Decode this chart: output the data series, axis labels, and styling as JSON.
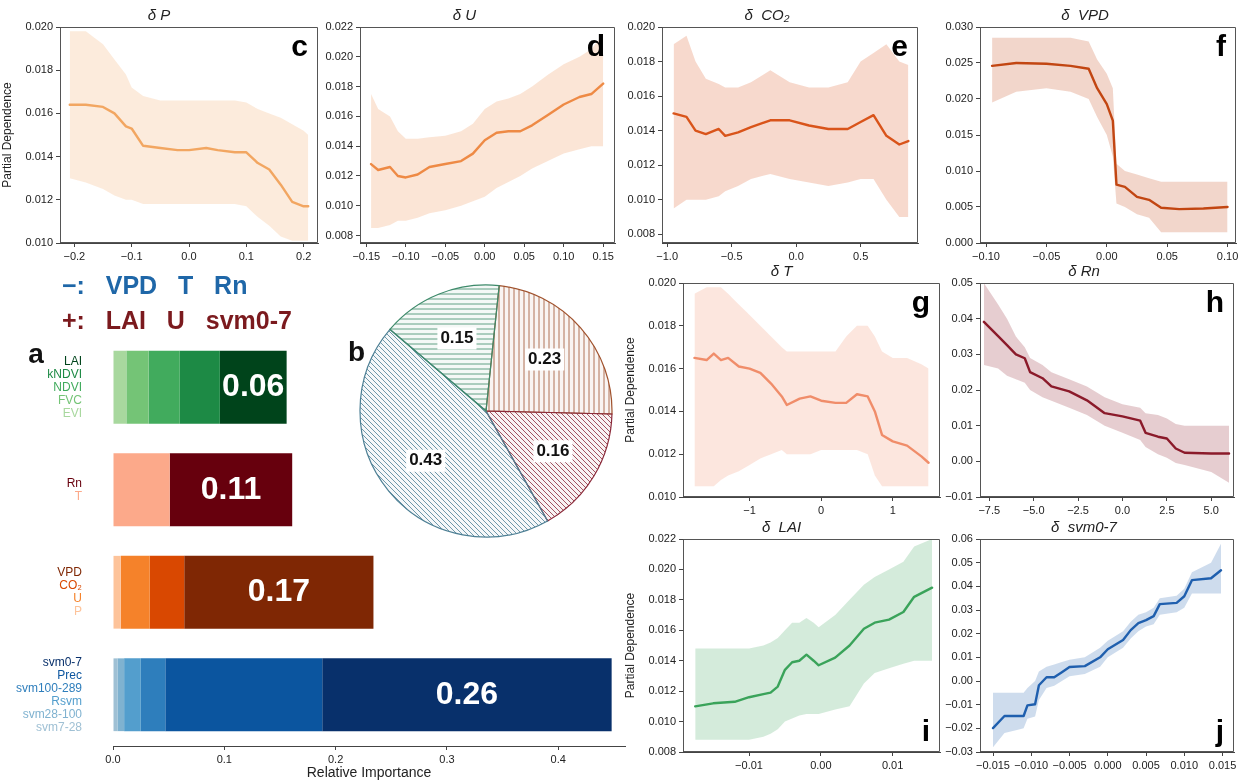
{
  "chart_data": [
    {
      "type": "line",
      "title": "δ P",
      "ylabel": "Partial Dependence",
      "annotations": [
        "c"
      ],
      "xlim": [
        -0.225,
        0.225
      ],
      "xticks": [
        {
          "value": -0.2,
          "label": "−0.2"
        },
        {
          "value": -0.1,
          "label": "−0.1"
        },
        {
          "value": 0,
          "label": "0.0"
        },
        {
          "value": 0.1,
          "label": "0.1"
        },
        {
          "value": 0.2,
          "label": "0.2"
        }
      ],
      "ylim": [
        0.01,
        0.02
      ],
      "yticks": [
        {
          "value": 0.01,
          "label": "0.010"
        },
        {
          "value": 0.012,
          "label": "0.012"
        },
        {
          "value": 0.014,
          "label": "0.014"
        },
        {
          "value": 0.016,
          "label": "0.016"
        },
        {
          "value": 0.018,
          "label": "0.018"
        },
        {
          "value": 0.02,
          "label": "0.020"
        }
      ],
      "series": [
        {
          "color": "#f2a661",
          "x": [
            -0.208,
            -0.18,
            -0.15,
            -0.13,
            -0.11,
            -0.1,
            -0.08,
            -0.05,
            -0.02,
            0,
            0.03,
            0.05,
            0.08,
            0.1,
            0.12,
            0.14,
            0.16,
            0.18,
            0.2,
            0.208
          ],
          "values": [
            0.0164,
            0.0164,
            0.0163,
            0.016,
            0.0154,
            0.0153,
            0.0145,
            0.0144,
            0.0143,
            0.0143,
            0.0144,
            0.0143,
            0.0142,
            0.0142,
            0.0137,
            0.0134,
            0.0127,
            0.0119,
            0.0117,
            0.0117
          ],
          "upper": [
            0.0198,
            0.0198,
            0.0192,
            0.0185,
            0.0178,
            0.0172,
            0.0168,
            0.0166,
            0.0166,
            0.0166,
            0.0166,
            0.0166,
            0.0166,
            0.0165,
            0.0162,
            0.016,
            0.0158,
            0.0155,
            0.0152,
            0.015
          ],
          "lower": [
            0.013,
            0.0128,
            0.0125,
            0.0122,
            0.012,
            0.012,
            0.0118,
            0.0118,
            0.0118,
            0.0118,
            0.0118,
            0.0118,
            0.0118,
            0.0117,
            0.0112,
            0.0108,
            0.0103,
            0.0101,
            0.0101,
            0.0101
          ]
        }
      ]
    },
    {
      "type": "line",
      "title": "δ U",
      "annotations": [
        "d"
      ],
      "xlim": [
        -0.158,
        0.165
      ],
      "xticks": [
        {
          "value": -0.15,
          "label": "−0.15"
        },
        {
          "value": -0.1,
          "label": "−0.10"
        },
        {
          "value": -0.05,
          "label": "−0.05"
        },
        {
          "value": 0,
          "label": "0.00"
        },
        {
          "value": 0.05,
          "label": "0.05"
        },
        {
          "value": 0.1,
          "label": "0.10"
        },
        {
          "value": 0.15,
          "label": "0.15"
        }
      ],
      "ylim": [
        0.0075,
        0.022
      ],
      "yticks": [
        {
          "value": 0.008,
          "label": "0.008"
        },
        {
          "value": 0.01,
          "label": "0.010"
        },
        {
          "value": 0.012,
          "label": "0.012"
        },
        {
          "value": 0.014,
          "label": "0.014"
        },
        {
          "value": 0.016,
          "label": "0.016"
        },
        {
          "value": 0.018,
          "label": "0.018"
        },
        {
          "value": 0.02,
          "label": "0.020"
        },
        {
          "value": 0.022,
          "label": "0.022"
        }
      ],
      "series": [
        {
          "color": "#ee8a45",
          "x": [
            -0.144,
            -0.135,
            -0.12,
            -0.11,
            -0.1,
            -0.085,
            -0.07,
            -0.05,
            -0.03,
            -0.015,
            0,
            0.015,
            0.03,
            0.045,
            0.06,
            0.08,
            0.1,
            0.12,
            0.135,
            0.15
          ],
          "values": [
            0.0128,
            0.0124,
            0.0126,
            0.012,
            0.0119,
            0.0121,
            0.0126,
            0.0128,
            0.013,
            0.0135,
            0.0144,
            0.0149,
            0.015,
            0.015,
            0.0154,
            0.0161,
            0.0168,
            0.0173,
            0.0175,
            0.0182
          ],
          "upper": [
            0.0175,
            0.0165,
            0.016,
            0.015,
            0.0145,
            0.0145,
            0.0146,
            0.0147,
            0.015,
            0.0155,
            0.0165,
            0.017,
            0.0172,
            0.0175,
            0.018,
            0.0188,
            0.0195,
            0.02,
            0.0205,
            0.0215
          ],
          "lower": [
            0.0085,
            0.0085,
            0.0087,
            0.009,
            0.009,
            0.0092,
            0.0095,
            0.0097,
            0.01,
            0.0103,
            0.0106,
            0.0112,
            0.0116,
            0.012,
            0.0125,
            0.013,
            0.0135,
            0.0138,
            0.014,
            0.014
          ]
        }
      ]
    },
    {
      "type": "line",
      "title": "δ  CO₂",
      "annotations": [
        "e"
      ],
      "xlim": [
        -1.04,
        0.945
      ],
      "xticks": [
        {
          "value": -1,
          "label": "−1.0"
        },
        {
          "value": -0.5,
          "label": "−0.5"
        },
        {
          "value": 0,
          "label": "0.0"
        },
        {
          "value": 0.5,
          "label": "0.5"
        }
      ],
      "ylim": [
        0.0075,
        0.02
      ],
      "yticks": [
        {
          "value": 0.008,
          "label": "0.008"
        },
        {
          "value": 0.01,
          "label": "0.010"
        },
        {
          "value": 0.012,
          "label": "0.012"
        },
        {
          "value": 0.014,
          "label": "0.014"
        },
        {
          "value": 0.016,
          "label": "0.016"
        },
        {
          "value": 0.018,
          "label": "0.018"
        },
        {
          "value": 0.02,
          "label": "0.020"
        }
      ],
      "series": [
        {
          "color": "#d9541a",
          "x": [
            -0.95,
            -0.85,
            -0.78,
            -0.7,
            -0.6,
            -0.55,
            -0.45,
            -0.35,
            -0.2,
            -0.05,
            0.1,
            0.25,
            0.4,
            0.5,
            0.6,
            0.7,
            0.8,
            0.87
          ],
          "values": [
            0.015,
            0.0148,
            0.014,
            0.0138,
            0.0141,
            0.0137,
            0.0139,
            0.0142,
            0.0146,
            0.0146,
            0.0143,
            0.0141,
            0.0141,
            0.0145,
            0.0149,
            0.0137,
            0.0132,
            0.0134
          ],
          "upper": [
            0.019,
            0.0195,
            0.018,
            0.017,
            0.0167,
            0.0165,
            0.0165,
            0.0168,
            0.0175,
            0.0168,
            0.0165,
            0.0165,
            0.0168,
            0.018,
            0.0185,
            0.019,
            0.018,
            0.0178
          ],
          "lower": [
            0.0095,
            0.01,
            0.01,
            0.01,
            0.0102,
            0.0105,
            0.0108,
            0.0112,
            0.0115,
            0.0112,
            0.011,
            0.0108,
            0.011,
            0.0112,
            0.0112,
            0.01,
            0.009,
            0.009
          ]
        }
      ]
    },
    {
      "type": "line",
      "title": "δ  VPD",
      "annotations": [
        "f"
      ],
      "xlim": [
        -0.105,
        0.107
      ],
      "xticks": [
        {
          "value": -0.1,
          "label": "−0.10"
        },
        {
          "value": -0.05,
          "label": "−0.05"
        },
        {
          "value": 0,
          "label": "0.00"
        },
        {
          "value": 0.05,
          "label": "0.05"
        },
        {
          "value": 0.1,
          "label": "0.10"
        }
      ],
      "ylim": [
        0,
        0.03
      ],
      "yticks": [
        {
          "value": 0,
          "label": "0.000"
        },
        {
          "value": 0.005,
          "label": "0.005"
        },
        {
          "value": 0.01,
          "label": "0.010"
        },
        {
          "value": 0.015,
          "label": "0.015"
        },
        {
          "value": 0.02,
          "label": "0.020"
        },
        {
          "value": 0.025,
          "label": "0.025"
        },
        {
          "value": 0.03,
          "label": "0.030"
        }
      ],
      "series": [
        {
          "color": "#c24612",
          "x": [
            -0.095,
            -0.075,
            -0.05,
            -0.03,
            -0.015,
            -0.008,
            0,
            0.005,
            0.008,
            0.015,
            0.025,
            0.035,
            0.045,
            0.06,
            0.08,
            0.1
          ],
          "values": [
            0.0246,
            0.025,
            0.0249,
            0.0246,
            0.0242,
            0.0215,
            0.0193,
            0.017,
            0.0081,
            0.0078,
            0.0064,
            0.006,
            0.0049,
            0.0047,
            0.0048,
            0.005
          ],
          "upper": [
            0.0285,
            0.0285,
            0.0285,
            0.0285,
            0.028,
            0.0255,
            0.0235,
            0.0215,
            0.011,
            0.01,
            0.0095,
            0.009,
            0.0085,
            0.0085,
            0.0085,
            0.0085
          ],
          "lower": [
            0.0195,
            0.021,
            0.0215,
            0.021,
            0.02,
            0.0175,
            0.015,
            0.012,
            0.0055,
            0.005,
            0.004,
            0.0035,
            0.0015,
            0.0015,
            0.0015,
            0.0015
          ]
        }
      ]
    },
    {
      "type": "bar",
      "orientation": "horizontal",
      "stacked": true,
      "xlabel": "Relative Importance",
      "annotations": [
        "a",
        "−:   VPD   T   Rn",
        "+:   LAI   U   svm0-7"
      ],
      "categories": [
        null,
        null,
        null,
        null
      ],
      "xlim": [
        0,
        0.46
      ],
      "xticks": [
        {
          "value": 0,
          "label": "0.0"
        },
        {
          "value": 0.1,
          "label": "0.1"
        },
        {
          "value": 0.2,
          "label": "0.2"
        },
        {
          "value": 0.3,
          "label": "0.3"
        },
        {
          "value": 0.4,
          "label": "0.4"
        }
      ],
      "series": [
        {
          "name": "EVI",
          "color": "#a8d89e",
          "values": [
            0.012,
            null,
            null,
            null
          ]
        },
        {
          "name": "FVC",
          "color": "#74c476",
          "values": [
            0.02,
            null,
            null,
            null
          ]
        },
        {
          "name": "NDVI",
          "color": "#41ab5d",
          "values": [
            0.028,
            null,
            null,
            null
          ]
        },
        {
          "name": "kNDVI",
          "color": "#1d8a45",
          "values": [
            0.036,
            null,
            null,
            null
          ]
        },
        {
          "name": "LAI",
          "color": "#00441b",
          "values": [
            0.06,
            null,
            null,
            null
          ],
          "value_labels": [
            "0.06",
            null,
            null,
            null
          ]
        },
        {
          "name": "T",
          "color": "#fca98a",
          "values": [
            null,
            0.051,
            null,
            null
          ]
        },
        {
          "name": "Rn",
          "color": "#67000d",
          "values": [
            null,
            0.11,
            null,
            null
          ],
          "value_labels": [
            null,
            "0.11",
            null,
            null
          ]
        },
        {
          "name": "P",
          "color": "#fdc39a",
          "values": [
            null,
            null,
            0.007,
            null
          ]
        },
        {
          "name": "U",
          "color": "#f5822a",
          "values": [
            null,
            null,
            0.026,
            null
          ]
        },
        {
          "name": "CO₂",
          "color": "#d94801",
          "values": [
            null,
            null,
            0.031,
            null
          ]
        },
        {
          "name": "VPD",
          "color": "#7f2704",
          "values": [
            null,
            null,
            0.17,
            null
          ],
          "value_labels": [
            null,
            null,
            "0.17",
            null
          ]
        },
        {
          "name": "svm7-28",
          "color": "#9fc0d4",
          "values": [
            null,
            null,
            null,
            0.004
          ]
        },
        {
          "name": "svm28-100",
          "color": "#7fb2d0",
          "values": [
            null,
            null,
            null,
            0.006
          ]
        },
        {
          "name": "Rsvm",
          "color": "#539ecd",
          "values": [
            null,
            null,
            null,
            0.015
          ]
        },
        {
          "name": "svm100-289",
          "color": "#2e7ebc",
          "values": [
            null,
            null,
            null,
            0.022
          ]
        },
        {
          "name": "Prec",
          "color": "#0b559f",
          "values": [
            null,
            null,
            null,
            0.141
          ]
        },
        {
          "name": "svm0-7",
          "color": "#08306b",
          "values": [
            null,
            null,
            null,
            0.26
          ],
          "value_labels": [
            null,
            null,
            null,
            "0.26"
          ]
        }
      ]
    },
    {
      "type": "pie",
      "annotations": [
        "b"
      ],
      "data_labels": true,
      "categories": [
        null,
        null,
        null,
        null
      ],
      "values": [
        0.23,
        0.16,
        0.43,
        0.15
      ],
      "colors": [
        "#a0522d",
        "#8b2a3a",
        "#4d7f94",
        "#3d8a6a"
      ]
    },
    {
      "type": "line",
      "title": "δ T",
      "ylabel": "Partial Dependence",
      "annotations": [
        "g"
      ],
      "xlim": [
        -1.93,
        1.66
      ],
      "xticks": [
        {
          "value": -1,
          "label": "−1"
        },
        0,
        1
      ],
      "ylim": [
        0.01,
        0.02
      ],
      "yticks": [
        {
          "value": 0.01,
          "label": "0.010"
        },
        {
          "value": 0.012,
          "label": "0.012"
        },
        {
          "value": 0.014,
          "label": "0.014"
        },
        {
          "value": 0.016,
          "label": "0.016"
        },
        {
          "value": 0.018,
          "label": "0.018"
        },
        {
          "value": 0.02,
          "label": "0.020"
        }
      ],
      "series": [
        {
          "color": "#f08d6a",
          "x": [
            -1.77,
            -1.6,
            -1.5,
            -1.4,
            -1.3,
            -1.15,
            -1,
            -0.85,
            -0.7,
            -0.55,
            -0.48,
            -0.3,
            -0.15,
            0,
            0.2,
            0.35,
            0.5,
            0.65,
            0.75,
            0.85,
            1,
            1.2,
            1.4,
            1.5
          ],
          "values": [
            0.0165,
            0.0164,
            0.0167,
            0.0164,
            0.0165,
            0.0161,
            0.016,
            0.0158,
            0.0153,
            0.0147,
            0.0143,
            0.0146,
            0.0147,
            0.0145,
            0.0144,
            0.0144,
            0.0148,
            0.0147,
            0.014,
            0.0129,
            0.0126,
            0.0124,
            0.0119,
            0.0116
          ],
          "upper": [
            0.0195,
            0.0198,
            0.0198,
            0.0198,
            0.0195,
            0.019,
            0.0185,
            0.018,
            0.0175,
            0.017,
            0.0168,
            0.0168,
            0.0168,
            0.0168,
            0.0168,
            0.0175,
            0.018,
            0.018,
            0.0175,
            0.0168,
            0.0165,
            0.0165,
            0.0162,
            0.016
          ],
          "lower": [
            0.0105,
            0.0105,
            0.0105,
            0.0108,
            0.011,
            0.0112,
            0.0115,
            0.0118,
            0.012,
            0.0122,
            0.012,
            0.012,
            0.012,
            0.0122,
            0.0122,
            0.0122,
            0.0122,
            0.012,
            0.011,
            0.0105,
            0.0105,
            0.0105,
            0.0105,
            0.0105
          ]
        }
      ]
    },
    {
      "type": "line",
      "title": "δ Rn",
      "annotations": [
        "h"
      ],
      "xlim": [
        -8.02,
        6.28
      ],
      "xticks": [
        {
          "value": -7.5,
          "label": "−7.5"
        },
        {
          "value": -5,
          "label": "−5.0"
        },
        {
          "value": -2.5,
          "label": "−2.5"
        },
        {
          "value": 0,
          "label": "0.0"
        },
        {
          "value": 2.5,
          "label": "2.5"
        },
        {
          "value": 5,
          "label": "5.0"
        }
      ],
      "ylim": [
        -0.01,
        0.05
      ],
      "yticks": [
        {
          "value": -0.01,
          "label": "−0.01"
        },
        {
          "value": 0,
          "label": "0.00"
        },
        0.01,
        0.02,
        0.03,
        0.04,
        0.05
      ],
      "series": [
        {
          "color": "#8b1a2a",
          "x": [
            -7.8,
            -7,
            -6.5,
            -6,
            -5.5,
            -5.2,
            -4.5,
            -4,
            -3,
            -2,
            -1,
            0,
            1,
            1.3,
            2,
            2.5,
            3,
            3.5,
            5,
            6
          ],
          "values": [
            0.0391,
            0.0351,
            0.0326,
            0.03,
            0.0289,
            0.025,
            0.0233,
            0.021,
            0.0196,
            0.0171,
            0.0135,
            0.0126,
            0.0114,
            0.008,
            0.0069,
            0.0064,
            0.0036,
            0.0024,
            0.0022,
            0.0022
          ],
          "upper": [
            0.05,
            0.044,
            0.04,
            0.035,
            0.032,
            0.029,
            0.027,
            0.025,
            0.023,
            0.021,
            0.018,
            0.016,
            0.015,
            0.0135,
            0.013,
            0.012,
            0.0105,
            0.01,
            0.01,
            0.01
          ],
          "lower": [
            0.027,
            0.026,
            0.024,
            0.023,
            0.022,
            0.02,
            0.018,
            0.017,
            0.015,
            0.013,
            0.01,
            0.008,
            0.006,
            0.004,
            0.002,
            0.001,
            -0.0005,
            -0.001,
            -0.003,
            -0.006
          ]
        }
      ]
    },
    {
      "type": "line",
      "title": "δ  LAI",
      "ylabel": "Partial Dependence",
      "annotations": [
        "i"
      ],
      "xlim": [
        -0.0192,
        0.0166
      ],
      "xticks": [
        {
          "value": -0.01,
          "label": "−0.01"
        },
        {
          "value": 0,
          "label": "0.00"
        },
        0.01
      ],
      "ylim": [
        0.008,
        0.022
      ],
      "yticks": [
        {
          "value": 0.008,
          "label": "0.008"
        },
        {
          "value": 0.01,
          "label": "0.010"
        },
        {
          "value": 0.012,
          "label": "0.012"
        },
        {
          "value": 0.014,
          "label": "0.014"
        },
        {
          "value": 0.016,
          "label": "0.016"
        },
        {
          "value": 0.018,
          "label": "0.018"
        },
        {
          "value": 0.02,
          "label": "0.020"
        },
        {
          "value": 0.022,
          "label": "0.022"
        }
      ],
      "series": [
        {
          "color": "#3aa35a",
          "x": [
            -0.0175,
            -0.015,
            -0.012,
            -0.01,
            -0.008,
            -0.007,
            -0.006,
            -0.005,
            -0.004,
            -0.003,
            -0.002,
            -0.001,
            -0.0003,
            0.002,
            0.004,
            0.006,
            0.0075,
            0.0095,
            0.0115,
            0.013,
            0.0155
          ],
          "values": [
            0.011,
            0.0112,
            0.0113,
            0.0116,
            0.0118,
            0.0119,
            0.0123,
            0.0134,
            0.0139,
            0.014,
            0.0144,
            0.014,
            0.0137,
            0.0142,
            0.015,
            0.0161,
            0.0165,
            0.0167,
            0.0172,
            0.0182,
            0.0188
          ],
          "upper": [
            0.0148,
            0.0148,
            0.0148,
            0.0148,
            0.015,
            0.0152,
            0.0155,
            0.016,
            0.0165,
            0.0165,
            0.0168,
            0.0165,
            0.0162,
            0.017,
            0.018,
            0.019,
            0.0195,
            0.02,
            0.0205,
            0.0215,
            0.022
          ],
          "lower": [
            0.0088,
            0.0088,
            0.0088,
            0.0088,
            0.009,
            0.0092,
            0.0095,
            0.01,
            0.0102,
            0.0104,
            0.0105,
            0.0105,
            0.0105,
            0.0108,
            0.011,
            0.0125,
            0.0132,
            0.0135,
            0.0138,
            0.014,
            0.014
          ]
        }
      ]
    },
    {
      "type": "line",
      "title": "δ  svm0-7",
      "annotations": [
        "j"
      ],
      "xlim": [
        -0.0167,
        0.0165
      ],
      "xticks": [
        {
          "value": -0.015,
          "label": "−0.015"
        },
        {
          "value": -0.01,
          "label": "−0.010"
        },
        {
          "value": -0.005,
          "label": "−0.005"
        },
        {
          "value": 0,
          "label": "0.000"
        },
        0.005,
        {
          "value": 0.01,
          "label": "0.010"
        },
        0.015
      ],
      "ylim": [
        -0.03,
        0.06
      ],
      "yticks": [
        {
          "value": -0.03,
          "label": "−0.03"
        },
        {
          "value": -0.02,
          "label": "−0.02"
        },
        {
          "value": -0.01,
          "label": "−0.01"
        },
        {
          "value": 0,
          "label": "0.00"
        },
        0.01,
        0.02,
        0.03,
        0.04,
        0.05,
        {
          "value": 0.06,
          "label": "0.06"
        }
      ],
      "series": [
        {
          "color": "#1f5fae",
          "x": [
            -0.015,
            -0.0135,
            -0.011,
            -0.0105,
            -0.0095,
            -0.009,
            -0.008,
            -0.007,
            -0.006,
            -0.005,
            -0.003,
            -0.001,
            0,
            0.002,
            0.003,
            0.004,
            0.005,
            0.006,
            0.0068,
            0.009,
            0.01,
            0.011,
            0.0135,
            0.0148
          ],
          "values": [
            -0.0199,
            -0.0148,
            -0.0148,
            -0.0103,
            -0.0098,
            -0.0018,
            0.0016,
            0.0016,
            0.0037,
            0.0059,
            0.0063,
            0.01,
            0.0134,
            0.0173,
            0.0215,
            0.0245,
            0.0257,
            0.0274,
            0.0325,
            0.033,
            0.0358,
            0.0426,
            0.0434,
            0.0468
          ],
          "upper": [
            -0.005,
            -0.005,
            -0.005,
            -0.003,
            0,
            0.004,
            0.006,
            0.007,
            0.008,
            0.009,
            0.01,
            0.014,
            0.017,
            0.021,
            0.025,
            0.028,
            0.029,
            0.031,
            0.035,
            0.036,
            0.039,
            0.046,
            0.05,
            0.058
          ],
          "lower": [
            -0.028,
            -0.022,
            -0.02,
            -0.016,
            -0.015,
            -0.008,
            -0.003,
            -0.002,
            0,
            0.002,
            0.003,
            0.006,
            0.01,
            0.014,
            0.018,
            0.021,
            0.023,
            0.024,
            0.028,
            0.029,
            0.031,
            0.037,
            0.037,
            0.037
          ]
        }
      ]
    }
  ]
}
